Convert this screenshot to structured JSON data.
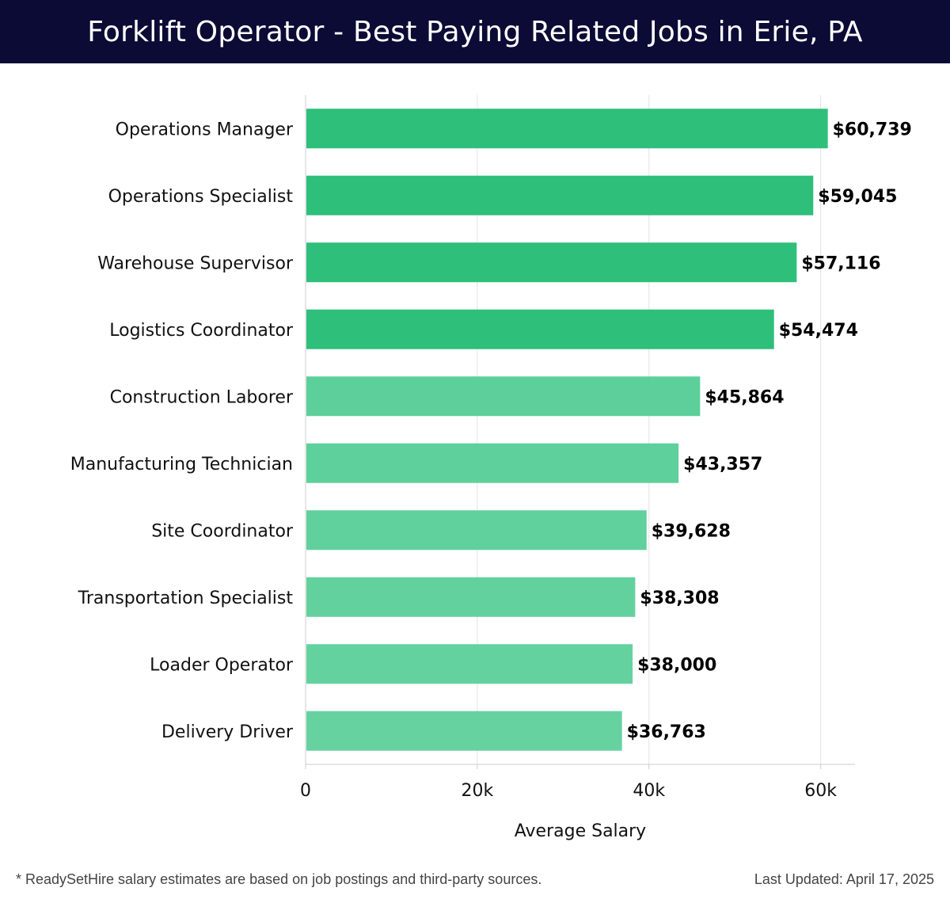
{
  "header": {
    "title": "Forklift Operator - Best Paying Related Jobs in Erie, PA"
  },
  "colors": {
    "header_bg": "#0b0b35",
    "bar_dark": "#2ebf7a",
    "bar_light": "#55cd96",
    "grid": "#e3e3e3",
    "axis": "#cccccc",
    "text": "#111111"
  },
  "chart_data": {
    "type": "bar",
    "orientation": "horizontal",
    "categories": [
      "Operations Manager",
      "Operations Specialist",
      "Warehouse Supervisor",
      "Logistics Coordinator",
      "Construction Laborer",
      "Manufacturing Technician",
      "Site Coordinator",
      "Transportation Specialist",
      "Loader Operator",
      "Delivery Driver"
    ],
    "values": [
      60739,
      59045,
      57116,
      54474,
      45864,
      43357,
      39628,
      38308,
      38000,
      36763
    ],
    "value_labels": [
      "$60,739",
      "$59,045",
      "$57,116",
      "$54,474",
      "$45,864",
      "$43,357",
      "$39,628",
      "$38,308",
      "$38,000",
      "$36,763"
    ],
    "xlabel": "Average Salary",
    "ylabel": "",
    "xlim": [
      0,
      64000
    ],
    "xticks": [
      0,
      20000,
      40000,
      60000
    ],
    "xtick_labels": [
      "0",
      "20k",
      "40k",
      "60k"
    ],
    "grid": true
  },
  "footer": {
    "note": "* ReadySetHire salary estimates are based on job postings and third-party sources.",
    "updated": "Last Updated: April 17, 2025"
  }
}
